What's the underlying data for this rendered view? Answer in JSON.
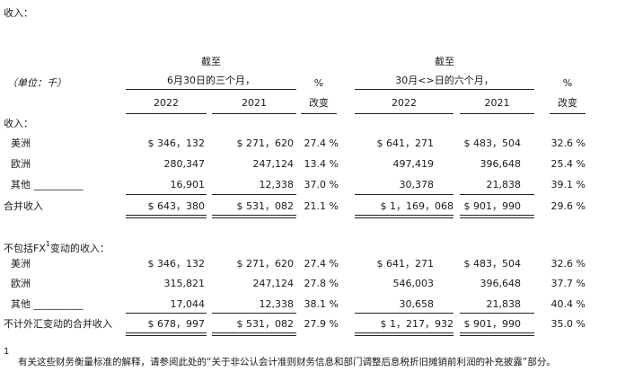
{
  "section_title": "收入：",
  "unit_label": "（单位：千）",
  "header": {
    "three_months_top": "截至",
    "three_months_bottom": "6月30日的三个月，",
    "six_months_top": "截至",
    "six_months_bottom": "30月<>日的六个月，",
    "pct_top": "%",
    "pct_bottom": "改变",
    "year_2022": "2022",
    "year_2021": "2021"
  },
  "revenue": {
    "label": "收入：",
    "rows": [
      {
        "name": "美洲",
        "q2022": "$ 346，132",
        "q2021": "$ 271，620",
        "qpct": "27.4 %",
        "h2022": "$ 641，271",
        "h2021": "$ 483，504",
        "hpct": "32.6 %"
      },
      {
        "name": "欧洲",
        "q2022": "280,347",
        "q2021": "247,124",
        "qpct": "13.4 %",
        "h2022": "497,419",
        "h2021": "396,648",
        "hpct": "25.4 %"
      },
      {
        "name": "其他 __________",
        "q2022": "16,901",
        "q2021": "12,338",
        "qpct": "37.0 %",
        "h2022": "30,378",
        "h2021": "21,838",
        "hpct": "39.1 %"
      }
    ],
    "total": {
      "name": "合并收入",
      "q2022": "$ 643，380",
      "q2021": "$ 531，082",
      "qpct": "21.1 %",
      "h2022": "$ 1，169，068",
      "h2021": "$ 901，990",
      "hpct": "29.6 %"
    }
  },
  "fx": {
    "label_pre": "不包括FX",
    "label_sup": "1",
    "label_post": "变动的收入：",
    "rows": [
      {
        "name": "美洲",
        "q2022": "$ 346，132",
        "q2021": "$ 271，620",
        "qpct": "27.4 %",
        "h2022": "$ 641，271",
        "h2021": "$ 483，504",
        "hpct": "32.6 %"
      },
      {
        "name": "欧洲",
        "q2022": "315,821",
        "q2021": "247,124",
        "qpct": "27.8 %",
        "h2022": "546,003",
        "h2021": "396,648",
        "hpct": "37.7 %"
      },
      {
        "name": "其他 __________",
        "q2022": "17,044",
        "q2021": "12,338",
        "qpct": "38.1 %",
        "h2022": "30,658",
        "h2021": "21,838",
        "hpct": "40.4 %"
      }
    ],
    "total": {
      "name": "不计外汇变动的合并收入",
      "q2022": "$ 678，997",
      "q2021": "$ 531，082",
      "qpct": "27.9 %",
      "h2022": "$ 1，217，932",
      "h2021": "$ 901，990",
      "hpct": "35.0 %"
    }
  },
  "footnote": {
    "marker": "1",
    "text": "有关这些财务衡量标准的解释，请参阅此处的“关于非公认会计准则财务信息和部门调整后息税折旧摊销前利润的补充披露”部分。"
  }
}
